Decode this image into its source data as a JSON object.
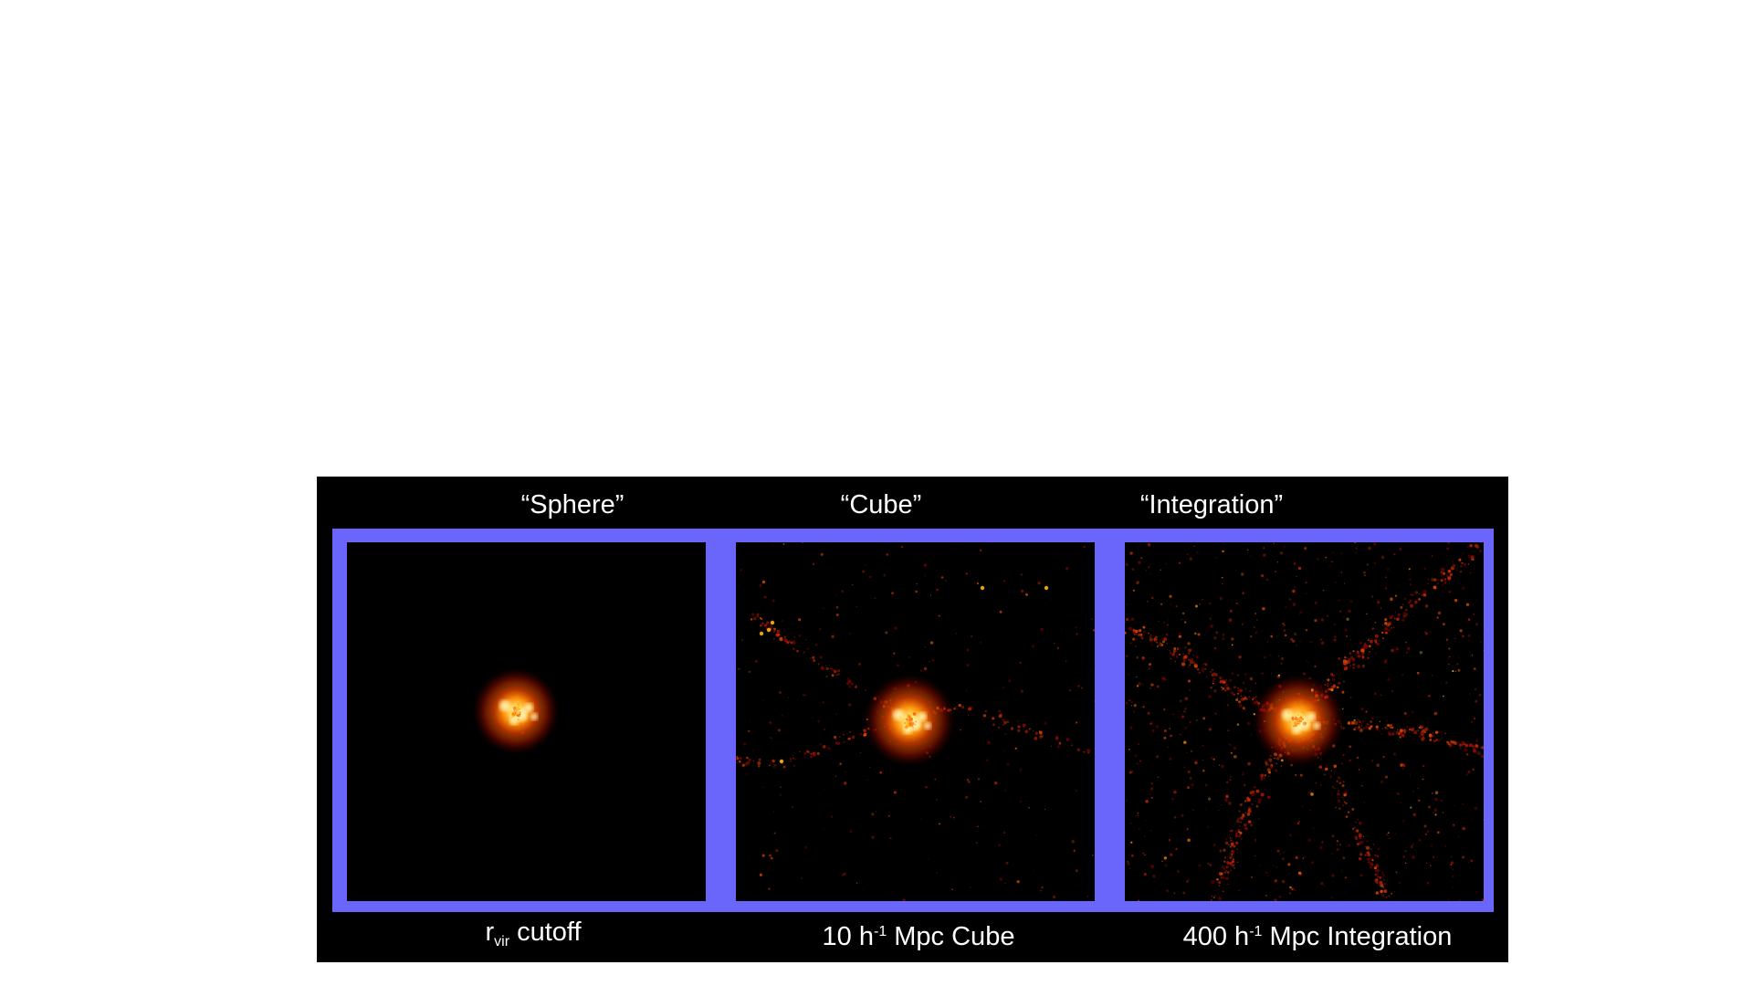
{
  "figure": {
    "frame_color": "#6a66fc",
    "panels": [
      {
        "title": "“Sphere”",
        "caption": {
          "main": "r",
          "sub": "vir",
          "rest": " cutoff"
        }
      },
      {
        "title": "“Cube”",
        "caption": {
          "pre": "10 h",
          "sup": "-1",
          "rest": " Mpc Cube"
        }
      },
      {
        "title": "“Integration”",
        "caption": {
          "pre": "400 h",
          "sup": "-1",
          "rest": " Mpc Integration"
        }
      }
    ]
  }
}
